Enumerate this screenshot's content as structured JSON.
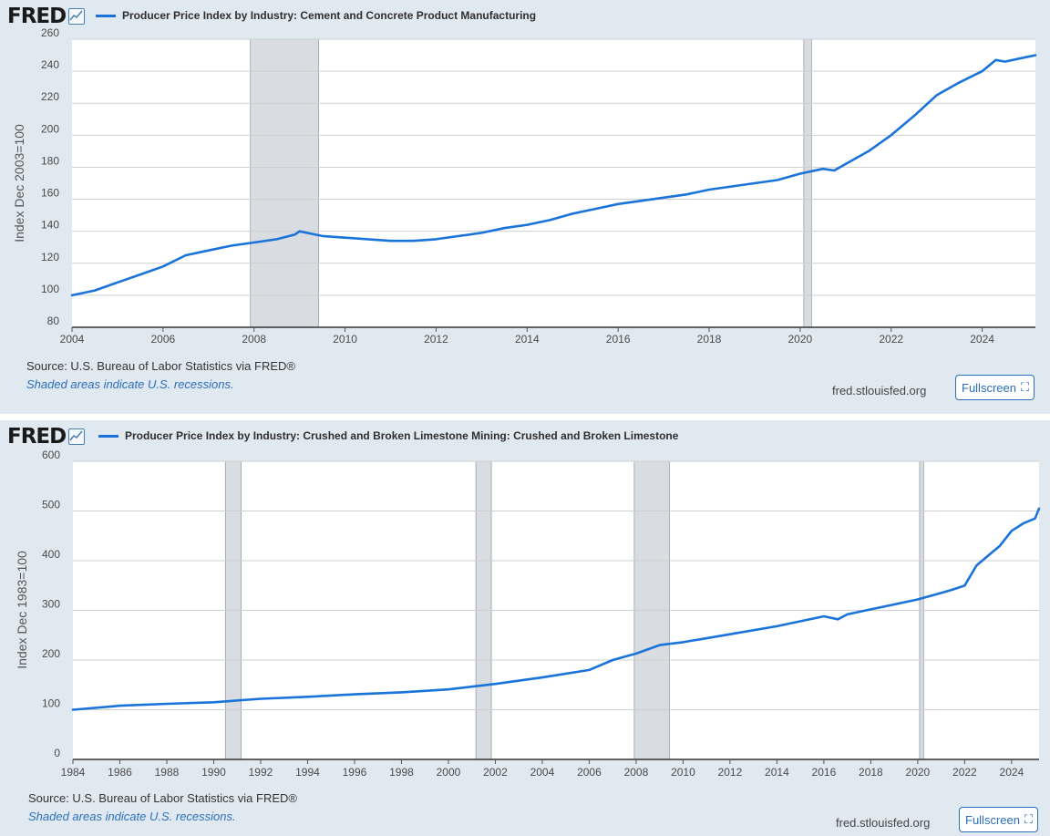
{
  "brand": {
    "logo_text": "FRED"
  },
  "colors": {
    "line": "#1a73d9",
    "recession": "#d9dde2",
    "grid": "#cfcfcf",
    "panel_bg": "#e1e9f0"
  },
  "panels": [
    {
      "legend": "Producer Price Index by Industry: Cement and Concrete Product Manufacturing",
      "source": "Source: U.S. Bureau of Labor Statistics via FRED®",
      "recession_note": "Shaded areas indicate U.S. recessions.",
      "site": "fred.stlouisfed.org",
      "fullscreen_label": "Fullscreen"
    },
    {
      "legend": "Producer Price Index by Industry: Crushed and Broken Limestone Mining: Crushed and Broken Limestone",
      "source": "Source: U.S. Bureau of Labor Statistics via FRED®",
      "recession_note": "Shaded areas indicate U.S. recessions.",
      "site": "fred.stlouisfed.org",
      "fullscreen_label": "Fullscreen"
    }
  ],
  "chart_data": [
    {
      "type": "line",
      "title": "Producer Price Index by Industry: Cement and Concrete Product Manufacturing",
      "ylabel": "Index Dec 2003=100",
      "xlabel": "",
      "xlim": [
        2004.0,
        2025.17
      ],
      "ylim": [
        80,
        260
      ],
      "x_ticks": [
        2004,
        2006,
        2008,
        2010,
        2012,
        2014,
        2016,
        2018,
        2020,
        2022,
        2024
      ],
      "y_ticks": [
        80,
        100,
        120,
        140,
        160,
        180,
        200,
        220,
        240,
        260
      ],
      "recessions": [
        [
          2007.92,
          2009.42
        ],
        [
          2020.08,
          2020.25
        ]
      ],
      "series": [
        {
          "name": "Producer Price Index by Industry: Cement and Concrete Product Manufacturing",
          "x": [
            2004.0,
            2004.5,
            2005.0,
            2005.5,
            2006.0,
            2006.5,
            2007.0,
            2007.5,
            2008.0,
            2008.5,
            2008.9,
            2009.0,
            2009.5,
            2010.0,
            2010.5,
            2011.0,
            2011.5,
            2012.0,
            2012.5,
            2013.0,
            2013.5,
            2014.0,
            2014.5,
            2015.0,
            2015.5,
            2016.0,
            2016.5,
            2017.0,
            2017.5,
            2018.0,
            2018.5,
            2019.0,
            2019.5,
            2020.0,
            2020.5,
            2020.75,
            2021.0,
            2021.5,
            2022.0,
            2022.5,
            2023.0,
            2023.5,
            2024.0,
            2024.3,
            2024.5,
            2025.0,
            2025.17
          ],
          "y": [
            100,
            103,
            108,
            113,
            118,
            125,
            128,
            131,
            133,
            135,
            138,
            140,
            137,
            136,
            135,
            134,
            134,
            135,
            137,
            139,
            142,
            144,
            147,
            151,
            154,
            157,
            159,
            161,
            163,
            166,
            168,
            170,
            172,
            176,
            179,
            178,
            182,
            190,
            200,
            212,
            225,
            233,
            240,
            247,
            246,
            249,
            250
          ]
        }
      ]
    },
    {
      "type": "line",
      "title": "Producer Price Index by Industry: Crushed and Broken Limestone Mining: Crushed and Broken Limestone",
      "ylabel": "Index Dec 1983=100",
      "xlabel": "",
      "xlim": [
        1984.0,
        2025.17
      ],
      "ylim": [
        0,
        600
      ],
      "x_ticks": [
        1984,
        1986,
        1988,
        1990,
        1992,
        1994,
        1996,
        1998,
        2000,
        2002,
        2004,
        2006,
        2008,
        2010,
        2012,
        2014,
        2016,
        2018,
        2020,
        2022,
        2024
      ],
      "y_ticks": [
        0,
        100,
        200,
        300,
        400,
        500,
        600
      ],
      "recessions": [
        [
          1990.5,
          1991.17
        ],
        [
          2001.17,
          2001.83
        ],
        [
          2007.92,
          2009.42
        ],
        [
          2020.08,
          2020.25
        ]
      ],
      "series": [
        {
          "name": "Producer Price Index by Industry: Crushed and Broken Limestone Mining: Crushed and Broken Limestone",
          "x": [
            1984.0,
            1986.0,
            1988.0,
            1990.0,
            1992.0,
            1994.0,
            1996.0,
            1998.0,
            2000.0,
            2002.0,
            2004.0,
            2006.0,
            2007.0,
            2008.0,
            2009.0,
            2010.0,
            2012.0,
            2014.0,
            2016.0,
            2016.6,
            2017.0,
            2018.0,
            2019.0,
            2020.0,
            2021.0,
            2021.5,
            2022.0,
            2022.5,
            2023.0,
            2023.5,
            2024.0,
            2024.5,
            2025.0,
            2025.17
          ],
          "y": [
            100,
            108,
            112,
            115,
            122,
            126,
            131,
            135,
            141,
            152,
            165,
            180,
            200,
            213,
            230,
            236,
            252,
            268,
            288,
            282,
            292,
            302,
            312,
            322,
            335,
            342,
            350,
            390,
            410,
            430,
            460,
            475,
            485,
            505
          ]
        }
      ]
    }
  ]
}
